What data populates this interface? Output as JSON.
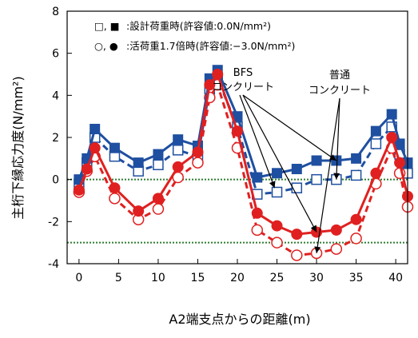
{
  "chart_data": {
    "type": "line",
    "xlabel": "A2端支点からの距離(m)",
    "ylabel": "主桁下縁応力度(N/mm²)",
    "xlim": [
      -1.5,
      41.5
    ],
    "ylim": [
      -4,
      8
    ],
    "xticks": [
      "0",
      "5",
      "10",
      "15",
      "20",
      "25",
      "30",
      "35",
      "40"
    ],
    "yticks": [
      "-4",
      "-2",
      "0",
      "2",
      "4",
      "6",
      "8"
    ],
    "grid": false,
    "legend_position": "top-left",
    "legend": [
      {
        "markers": "□, ■",
        "label": ":設計荷重時(許容値:0.0N/mm²)",
        "color": "#1f4fa0"
      },
      {
        "markers": "○, ●",
        "label": ":活荷重1.7倍時(許容値:−3.0N/mm²)",
        "color": "#e02020"
      }
    ],
    "annotations": [
      {
        "line1": "BFS",
        "line2": "コンクリート"
      },
      {
        "line1": "普通",
        "line2": "コンクリート"
      }
    ],
    "reference_lines": [
      {
        "y": 0.0,
        "style": "dotted",
        "color": "#2e7d32",
        "label": "許容値:0.0N/mm²"
      },
      {
        "y": -3.0,
        "style": "dotted",
        "color": "#2e7d32",
        "label": "許容値:−3.0N/mm²"
      }
    ],
    "x": [
      0,
      1,
      2,
      4.5,
      7.5,
      10,
      12.5,
      15,
      16.5,
      17.5,
      20,
      22.5,
      25,
      27.5,
      30,
      32.5,
      35,
      37.5,
      39.5,
      40.5,
      41.5
    ],
    "series": [
      {
        "name": "設計荷重時 BFSコンクリート",
        "color": "#1f4fa0",
        "marker": "square-filled",
        "linestyle": "solid",
        "values": [
          0.0,
          1.0,
          2.4,
          1.5,
          0.8,
          1.2,
          1.9,
          1.6,
          4.8,
          5.2,
          3.0,
          0.1,
          0.3,
          0.5,
          0.9,
          0.9,
          1.0,
          2.3,
          3.1,
          1.7,
          0.8
        ]
      },
      {
        "name": "設計荷重時 普通コンクリート",
        "color": "#1f4fa0",
        "marker": "square-open",
        "linestyle": "dashed",
        "values": [
          -0.3,
          0.8,
          2.0,
          1.1,
          0.4,
          0.7,
          1.4,
          1.1,
          4.3,
          4.8,
          2.5,
          -0.7,
          -0.6,
          -0.4,
          0.0,
          0.0,
          0.2,
          1.7,
          2.5,
          1.2,
          0.3
        ]
      },
      {
        "name": "活荷重1.7倍時 BFSコンクリート",
        "color": "#e02020",
        "marker": "circle-filled",
        "linestyle": "solid",
        "values": [
          -0.5,
          0.5,
          1.5,
          -0.4,
          -1.5,
          -0.9,
          0.6,
          1.3,
          4.5,
          5.0,
          2.3,
          -1.6,
          -2.2,
          -2.6,
          -2.5,
          -2.4,
          -1.9,
          0.3,
          2.0,
          0.8,
          -0.8
        ]
      },
      {
        "name": "活荷重1.7倍時 普通コンクリート",
        "color": "#e02020",
        "marker": "circle-open",
        "linestyle": "dashed",
        "values": [
          -0.6,
          0.4,
          1.1,
          -0.9,
          -1.9,
          -1.4,
          0.1,
          0.8,
          3.9,
          4.5,
          1.5,
          -2.4,
          -3.0,
          -3.6,
          -3.5,
          -3.3,
          -2.8,
          -0.2,
          1.5,
          0.3,
          -1.3
        ]
      }
    ]
  }
}
